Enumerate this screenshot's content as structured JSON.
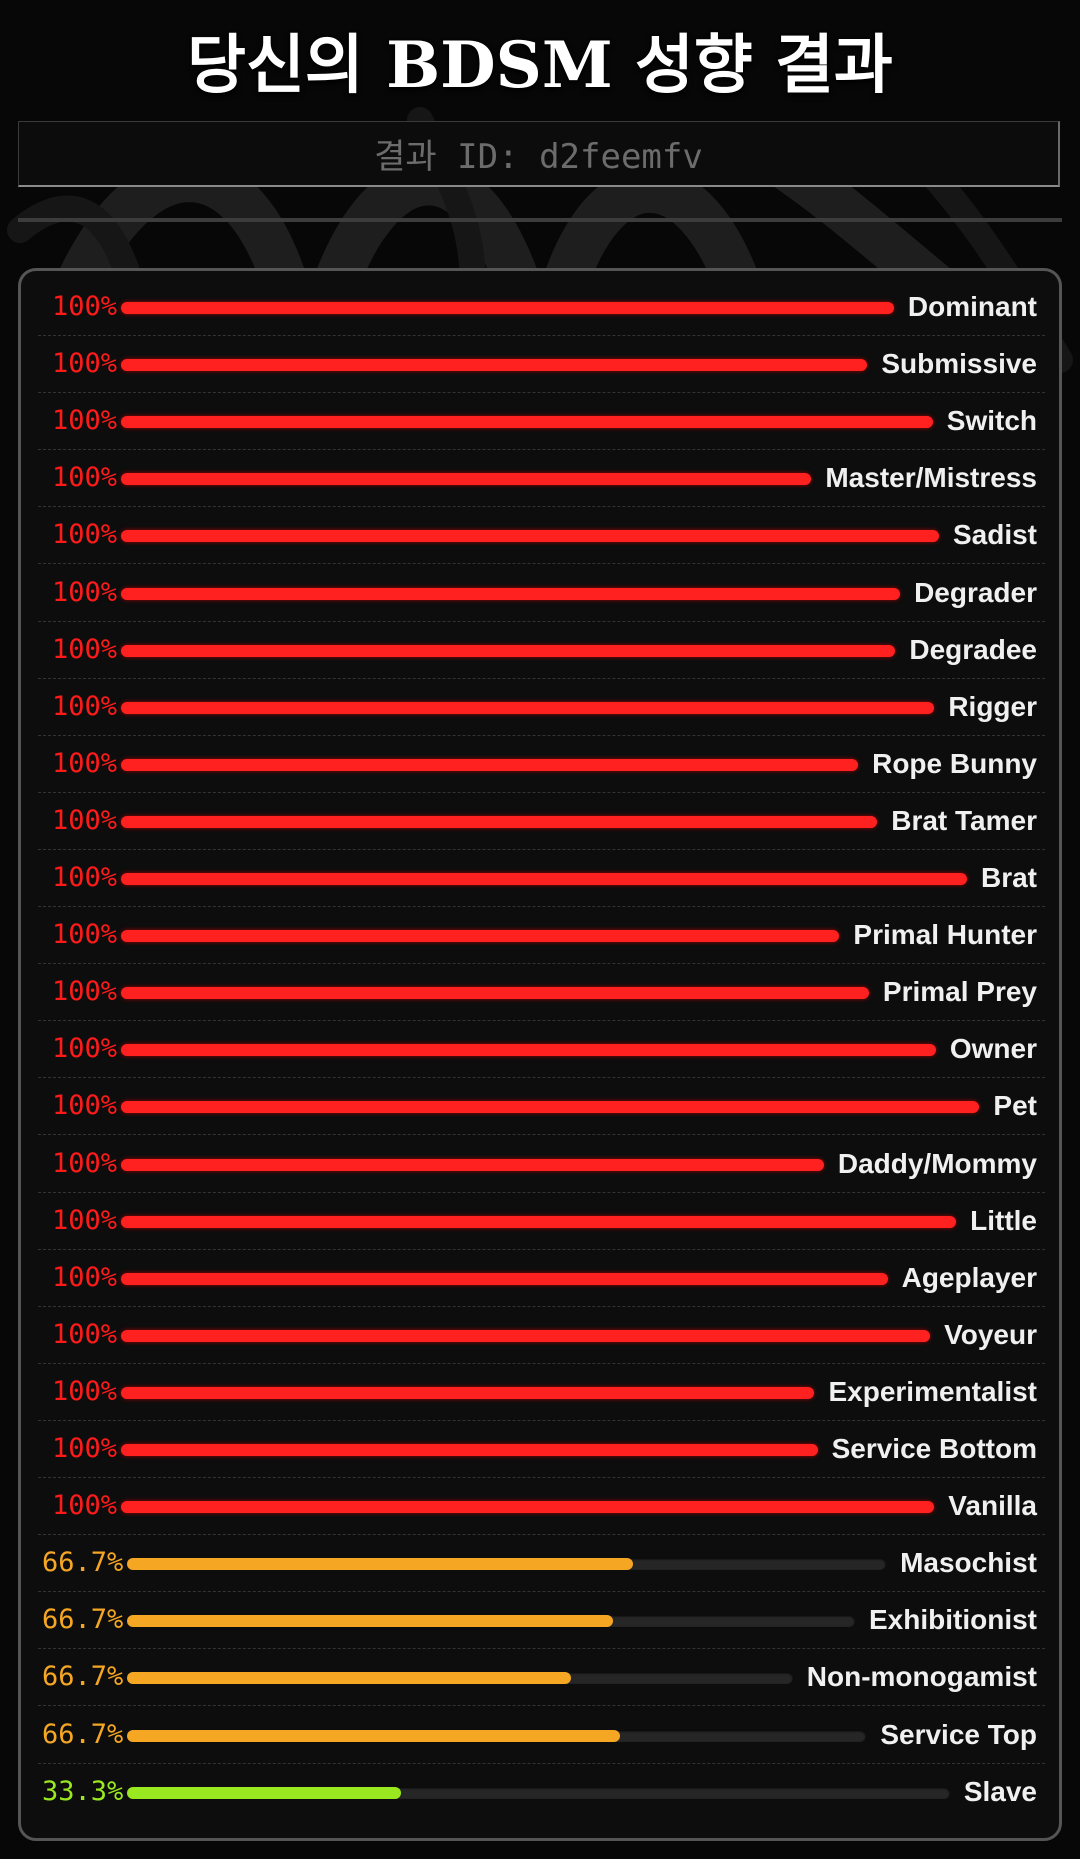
{
  "title": "당신의 BDSM 성향 결과",
  "result_id": "결과 ID: d2feemfv",
  "colors": {
    "background": "#070707",
    "high": "#ff2020",
    "high_text": "#ff1a1a",
    "medium": "#f5a623",
    "low": "#9ae81f"
  },
  "results": [
    {
      "label": "Dominant",
      "percent": "100%",
      "value": 100,
      "level": "high"
    },
    {
      "label": "Submissive",
      "percent": "100%",
      "value": 100,
      "level": "high"
    },
    {
      "label": "Switch",
      "percent": "100%",
      "value": 100,
      "level": "high"
    },
    {
      "label": "Master/Mistress",
      "percent": "100%",
      "value": 100,
      "level": "high"
    },
    {
      "label": "Sadist",
      "percent": "100%",
      "value": 100,
      "level": "high"
    },
    {
      "label": "Degrader",
      "percent": "100%",
      "value": 100,
      "level": "high"
    },
    {
      "label": "Degradee",
      "percent": "100%",
      "value": 100,
      "level": "high"
    },
    {
      "label": "Rigger",
      "percent": "100%",
      "value": 100,
      "level": "high"
    },
    {
      "label": "Rope Bunny",
      "percent": "100%",
      "value": 100,
      "level": "high"
    },
    {
      "label": "Brat Tamer",
      "percent": "100%",
      "value": 100,
      "level": "high"
    },
    {
      "label": "Brat",
      "percent": "100%",
      "value": 100,
      "level": "high"
    },
    {
      "label": "Primal Hunter",
      "percent": "100%",
      "value": 100,
      "level": "high"
    },
    {
      "label": "Primal Prey",
      "percent": "100%",
      "value": 100,
      "level": "high"
    },
    {
      "label": "Owner",
      "percent": "100%",
      "value": 100,
      "level": "high"
    },
    {
      "label": "Pet",
      "percent": "100%",
      "value": 100,
      "level": "high"
    },
    {
      "label": "Daddy/Mommy",
      "percent": "100%",
      "value": 100,
      "level": "high"
    },
    {
      "label": "Little",
      "percent": "100%",
      "value": 100,
      "level": "high"
    },
    {
      "label": "Ageplayer",
      "percent": "100%",
      "value": 100,
      "level": "high"
    },
    {
      "label": "Voyeur",
      "percent": "100%",
      "value": 100,
      "level": "high"
    },
    {
      "label": "Experimentalist",
      "percent": "100%",
      "value": 100,
      "level": "high"
    },
    {
      "label": "Service Bottom",
      "percent": "100%",
      "value": 100,
      "level": "high"
    },
    {
      "label": "Vanilla",
      "percent": "100%",
      "value": 100,
      "level": "high"
    },
    {
      "label": "Masochist",
      "percent": "66.7%",
      "value": 66.7,
      "level": "medium"
    },
    {
      "label": "Exhibitionist",
      "percent": "66.7%",
      "value": 66.7,
      "level": "medium"
    },
    {
      "label": "Non-monogamist",
      "percent": "66.7%",
      "value": 66.7,
      "level": "medium"
    },
    {
      "label": "Service Top",
      "percent": "66.7%",
      "value": 66.7,
      "level": "medium"
    },
    {
      "label": "Slave",
      "percent": "33.3%",
      "value": 33.3,
      "level": "low"
    }
  ]
}
